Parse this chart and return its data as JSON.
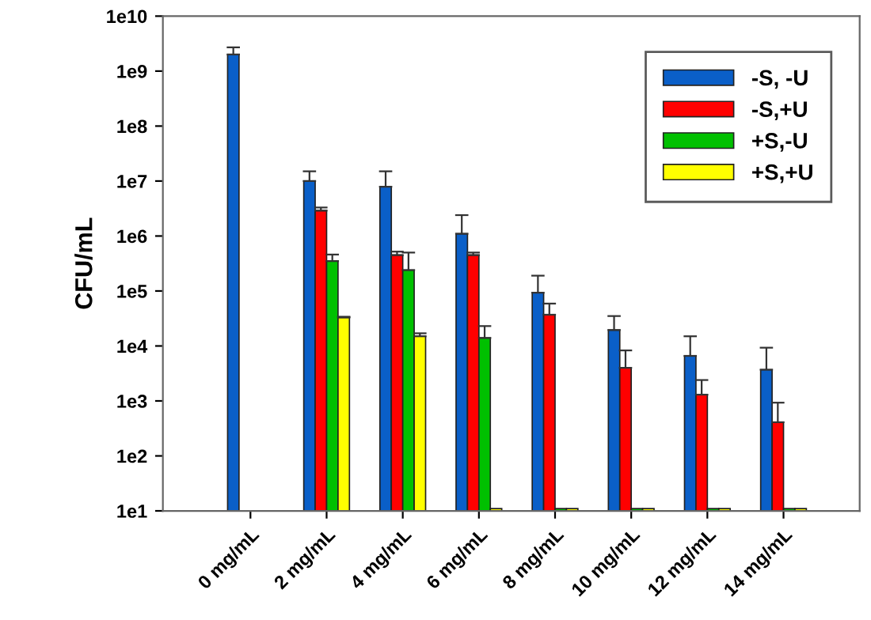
{
  "chart_data": {
    "type": "bar",
    "ylabel": "CFU/mL",
    "log": "y",
    "categories": [
      "0 mg/mL",
      "2 mg/mL",
      "4 mg/mL",
      "6 mg/mL",
      "8 mg/mL",
      "10 mg/mL",
      "12 mg/mL",
      "14 mg/mL"
    ],
    "series": [
      {
        "name": "-S, -U",
        "color": "#0a5fc8",
        "values": [
          2000000000.0,
          10000000.0,
          7900000.0,
          1100000.0,
          93000.0,
          19500.0,
          6600.0,
          3700.0
        ],
        "errors": [
          [
            2000000000.0,
            2700000000.0
          ],
          [
            10000000.0,
            15000000.0
          ],
          [
            7900000.0,
            15000000.0
          ],
          [
            1100000.0,
            2400000.0
          ],
          [
            93000.0,
            190000.0
          ],
          [
            19500.0,
            35000.0
          ],
          [
            6600.0,
            15000.0
          ],
          [
            3700.0,
            9300.0
          ]
        ]
      },
      {
        "name": "-S,+U",
        "color": "#ff0000",
        "values": [
          null,
          2900000.0,
          450000.0,
          450000.0,
          37000.0,
          4000.0,
          1300.0,
          410
        ],
        "errors": [
          null,
          [
            2900000.0,
            3300000.0
          ],
          [
            450000.0,
            520000.0
          ],
          [
            450000.0,
            500000.0
          ],
          [
            37000.0,
            59000.0
          ],
          [
            4000.0,
            8300.0
          ],
          [
            1300.0,
            2400.0
          ],
          [
            410,
            930
          ]
        ]
      },
      {
        "name": "+S,-U",
        "color": "#00c000",
        "values": [
          null,
          350000.0,
          240000.0,
          14000.0,
          11,
          11,
          11,
          11
        ],
        "errors": [
          null,
          [
            350000.0,
            460000.0
          ],
          [
            240000.0,
            500000.0
          ],
          [
            14000.0,
            23000.0
          ],
          null,
          null,
          null,
          null
        ]
      },
      {
        "name": "+S,+U",
        "color": "#ffff00",
        "values": [
          null,
          33000.0,
          15000.0,
          11,
          11,
          11,
          11,
          11
        ],
        "errors": [
          null,
          [
            33000.0,
            34000.0
          ],
          [
            15000.0,
            17000.0
          ],
          null,
          null,
          null,
          null,
          null
        ]
      }
    ],
    "ylim": [
      10,
      10000000000.0
    ],
    "yticks": [
      {
        "value": 10,
        "label": "1e1"
      },
      {
        "value": 100,
        "label": "1e2"
      },
      {
        "value": 1000,
        "label": "1e3"
      },
      {
        "value": 10000,
        "label": "1e4"
      },
      {
        "value": 100000,
        "label": "1e5"
      },
      {
        "value": 1000000,
        "label": "1e6"
      },
      {
        "value": 10000000,
        "label": "1e7"
      },
      {
        "value": 100000000,
        "label": "1e8"
      },
      {
        "value": 1000000000,
        "label": "1e9"
      },
      {
        "value": 10000000000,
        "label": "1e10"
      }
    ],
    "grid": false,
    "legend": "top right"
  }
}
